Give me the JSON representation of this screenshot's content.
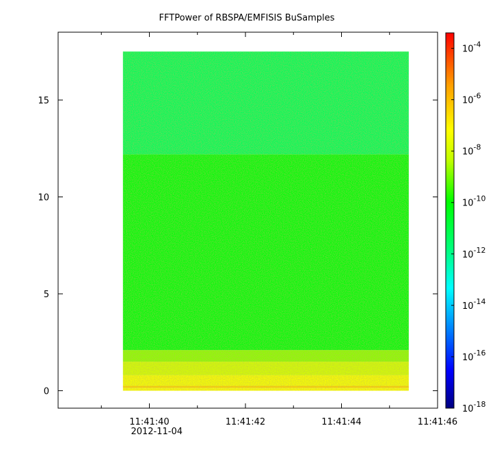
{
  "chart_data": {
    "type": "heatmap",
    "title": "FFTPower of RBSPA/EMFISIS  BuSamples",
    "xlabel": "",
    "ylabel": "",
    "x_ticks": [
      "11:41:40",
      "11:41:42",
      "11:41:44",
      "11:41:46"
    ],
    "x_tick_values_sec": [
      40,
      42,
      44,
      46
    ],
    "x_date_label": "2012-11-04",
    "x_range_sec": [
      38.1,
      46.0
    ],
    "data_x_range_sec": [
      39.45,
      45.4
    ],
    "y_ticks": [
      "0",
      "5",
      "10",
      "15"
    ],
    "y_tick_values": [
      0,
      5,
      10,
      15
    ],
    "ylim": [
      -0.9,
      18.5
    ],
    "data_y_range": [
      0.0,
      17.5
    ],
    "zscale": "log",
    "colorbar": {
      "exponents": [
        -4,
        -6,
        -8,
        -10,
        -12,
        -14,
        -16,
        -18
      ],
      "tick_labels": [
        "10",
        "10",
        "10",
        "10",
        "10",
        "10",
        "10",
        "10"
      ],
      "tick_superscripts": [
        "-4",
        "-6",
        "-8",
        "-10",
        "-12",
        "-14",
        "-16",
        "-18"
      ],
      "zlim_exponent": [
        -18,
        -3.4
      ]
    },
    "bands": [
      {
        "y": [
          0.0,
          0.15
        ],
        "log_power": -7.2
      },
      {
        "y": [
          0.15,
          0.25
        ],
        "log_power": -6.3
      },
      {
        "y": [
          0.25,
          0.8
        ],
        "log_power": -7.3
      },
      {
        "y": [
          0.8,
          1.5
        ],
        "log_power": -8.0
      },
      {
        "y": [
          1.5,
          2.1
        ],
        "log_power": -8.8
      },
      {
        "y": [
          2.1,
          12.2
        ],
        "log_power": -10.1
      },
      {
        "y": [
          12.2,
          17.5
        ],
        "log_power": -11.3
      }
    ]
  }
}
